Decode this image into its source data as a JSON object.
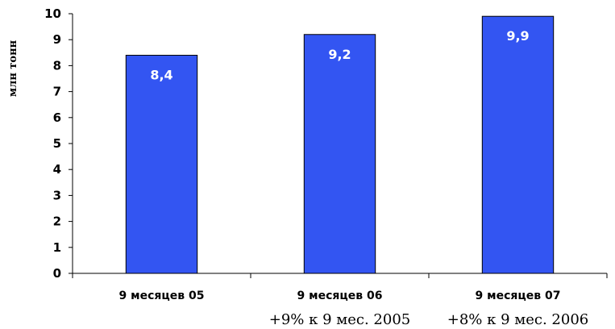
{
  "chart_data": {
    "type": "bar",
    "ylabel": "млн тонн",
    "categories": [
      "9 месяцев 05",
      "9 месяцев 06",
      "9 месяцев 07"
    ],
    "values": [
      8.4,
      9.2,
      9.9
    ],
    "data_labels": [
      "8,4",
      "9,2",
      "9,9"
    ],
    "notes": [
      "",
      "+9% к 9 мес. 2005",
      "+8% к 9 мес. 2006"
    ],
    "ylim": [
      0,
      10
    ],
    "yticks": [
      0,
      1,
      2,
      3,
      4,
      5,
      6,
      7,
      8,
      9,
      10
    ],
    "grid": false,
    "bar_color": "#3355f2"
  }
}
